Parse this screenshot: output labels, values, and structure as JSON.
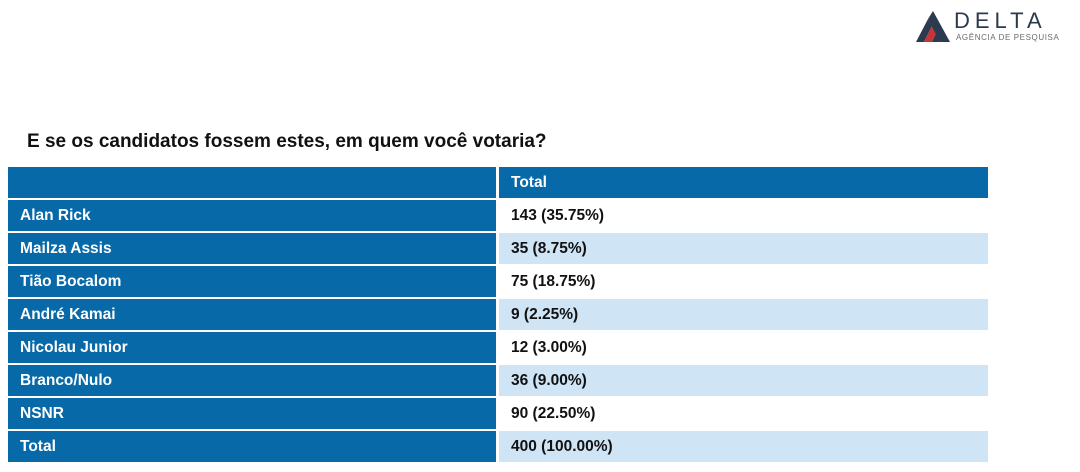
{
  "logo": {
    "brand": "DELTA",
    "tagline": "AGÊNCIA DE PESQUISA",
    "colors": {
      "dark": "#2b3a4f",
      "accent": "#c8343b"
    }
  },
  "title": "E se os candidatos fossem estes, em quem você votaria?",
  "table": {
    "header": {
      "label": "",
      "value": "Total"
    },
    "rows": [
      {
        "label": "Alan Rick",
        "value": "143 (35.75%)"
      },
      {
        "label": "Mailza Assis",
        "value": "35 (8.75%)"
      },
      {
        "label": "Tião Bocalom",
        "value": "75 (18.75%)"
      },
      {
        "label": "André Kamai",
        "value": "9 (2.25%)"
      },
      {
        "label": "Nicolau Junior",
        "value": "12 (3.00%)"
      },
      {
        "label": "Branco/Nulo",
        "value": "36 (9.00%)"
      },
      {
        "label": "NSNR",
        "value": "90 (22.50%)"
      },
      {
        "label": "Total",
        "value": "400 (100.00%)"
      }
    ],
    "colors": {
      "header": "#0769a8",
      "row_alt": "#cfe4f5",
      "row": "#ffffff"
    }
  }
}
